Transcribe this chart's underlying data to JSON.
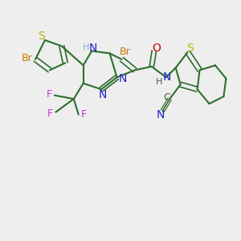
{
  "bg_color": "#eeeeee",
  "bond_color": "#2d6e2d",
  "bond_lw": 1.5,
  "figsize": [
    3.0,
    3.0
  ],
  "dpi": 100,
  "xlim": [
    0,
    10
  ],
  "ylim": [
    0,
    10
  ]
}
